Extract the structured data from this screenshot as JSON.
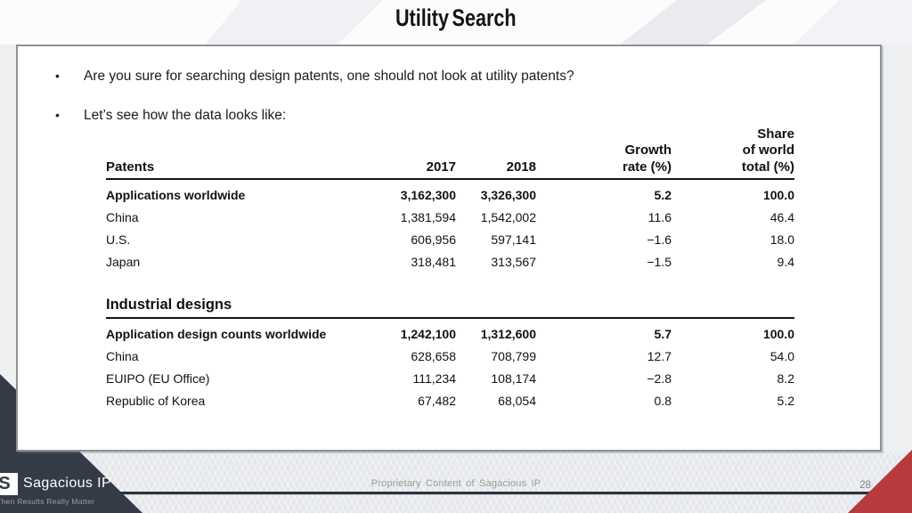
{
  "slide": {
    "title": "Utility Search",
    "bullets": [
      "Are you sure for searching design patents, one should not look at utility patents?",
      "Let’s see how the data looks like:"
    ],
    "footer": {
      "note": "Proprietary Content of Sagacious IP",
      "page_number": "28"
    },
    "logo": {
      "initial": "S",
      "name": "Sagacious IP",
      "tagline": "Then Results Really Matter"
    },
    "colors": {
      "brand_navy": "#333b47",
      "accent_red": "#b53b3e",
      "footer_line": "#2d323b"
    }
  },
  "table": {
    "headers": {
      "label": "Patents",
      "y2017": "2017",
      "y2018": "2018",
      "growth": [
        "Growth",
        "rate (%)"
      ],
      "share": [
        "Share",
        "of world",
        "total (%)"
      ]
    },
    "sections": [
      {
        "name": "",
        "rows": [
          {
            "label": "Applications worldwide",
            "y2017": "3,162,300",
            "y2018": "3,326,300",
            "growth": "5.2",
            "share": "100.0",
            "bold": true
          },
          {
            "label": "China",
            "y2017": "1,381,594",
            "y2018": "1,542,002",
            "growth": "11.6",
            "share": "46.4",
            "bold": false
          },
          {
            "label": "U.S.",
            "y2017": "606,956",
            "y2018": "597,141",
            "growth": "−1.6",
            "share": "18.0",
            "bold": false
          },
          {
            "label": "Japan",
            "y2017": "318,481",
            "y2018": "313,567",
            "growth": "−1.5",
            "share": "9.4",
            "bold": false
          }
        ]
      },
      {
        "name": "Industrial designs",
        "rows": [
          {
            "label": "Application design counts worldwide",
            "y2017": "1,242,100",
            "y2018": "1,312,600",
            "growth": "5.7",
            "share": "100.0",
            "bold": true
          },
          {
            "label": "China",
            "y2017": "628,658",
            "y2018": "708,799",
            "growth": "12.7",
            "share": "54.0",
            "bold": false
          },
          {
            "label": "EUIPO (EU Office)",
            "y2017": "111,234",
            "y2018": "108,174",
            "growth": "−2.8",
            "share": "8.2",
            "bold": false
          },
          {
            "label": "Republic of Korea",
            "y2017": "67,482",
            "y2018": "68,054",
            "growth": "0.8",
            "share": "5.2",
            "bold": false
          }
        ]
      }
    ]
  }
}
